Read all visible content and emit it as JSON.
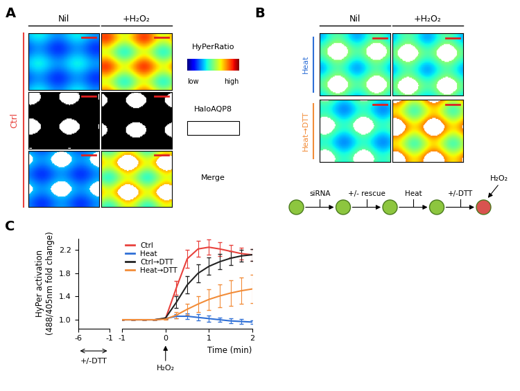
{
  "panel_labels": [
    "A",
    "B",
    "C"
  ],
  "panel_a": {
    "columns": [
      "Nil",
      "+H₂O₂"
    ],
    "row_group": "Ctrl",
    "channels": [
      "HyPerRatio",
      "HaloAQP8",
      "Merge"
    ],
    "colorbar_labels": [
      "low",
      "high"
    ]
  },
  "panel_b": {
    "columns": [
      "Nil",
      "+H₂O₂"
    ],
    "rows": [
      "Heat",
      "Heat→DTT"
    ],
    "flow_steps": [
      "siRNA",
      "+/- rescue",
      "Heat",
      "+/-DTT"
    ],
    "flow_final": "H₂O₂"
  },
  "chart_data": [
    {
      "type": "line",
      "xlim": [
        -6,
        -1
      ],
      "xticks": [
        -6,
        -1
      ],
      "ylim": [
        0.85,
        2.4
      ],
      "yticks": [
        {
          "value": 1.0,
          "label": "1.0"
        },
        {
          "value": 1.4,
          "label": "1.4"
        },
        {
          "value": 1.8,
          "label": "1.8"
        },
        {
          "value": 2.2,
          "label": "2.2"
        }
      ],
      "y_label": "HyPer activation\n(488/405nm fold change)",
      "annotations": [
        {
          "text": "+/-DTT",
          "x_range": [
            -6,
            -1
          ]
        }
      ],
      "x": [],
      "series": []
    },
    {
      "type": "line",
      "xlim": [
        -1,
        2
      ],
      "xticks": [
        -1,
        0,
        1,
        2
      ],
      "ylim": [
        0.85,
        2.4
      ],
      "tick_labels": "x",
      "x_label": "Time (min)",
      "annotations": [
        {
          "text": "H₂O₂",
          "x": 0
        }
      ],
      "legend": "upper left",
      "x": [
        -1,
        -0.75,
        -0.5,
        -0.25,
        0,
        0.25,
        0.5,
        0.75,
        1,
        1.25,
        1.5,
        1.75,
        2
      ],
      "series": [
        {
          "name": "Ctrl",
          "color": "#e8413c",
          "values": [
            1,
            1,
            1,
            1,
            1.02,
            1.55,
            2.05,
            2.22,
            2.25,
            2.22,
            2.18,
            2.14,
            2.12
          ],
          "errors": [
            0,
            0,
            0,
            0,
            0.01,
            0.12,
            0.15,
            0.14,
            0.13,
            0.12,
            0.11,
            0.1,
            0.1
          ]
        },
        {
          "name": "Heat",
          "color": "#2e6fd6",
          "values": [
            1,
            1,
            1,
            1,
            1.02,
            1.06,
            1.06,
            1.04,
            1.02,
            1.0,
            0.98,
            0.97,
            0.96
          ],
          "errors": [
            0,
            0,
            0,
            0,
            0.01,
            0.04,
            0.05,
            0.05,
            0.05,
            0.04,
            0.04,
            0.04,
            0.03
          ]
        },
        {
          "name": "Ctrl→DTT",
          "color": "#222222",
          "values": [
            1,
            1,
            1,
            1,
            1.03,
            1.3,
            1.6,
            1.8,
            1.92,
            2.0,
            2.06,
            2.1,
            2.12
          ],
          "errors": [
            0,
            0,
            0,
            0,
            0.01,
            0.1,
            0.15,
            0.16,
            0.15,
            0.13,
            0.12,
            0.1,
            0.1
          ]
        },
        {
          "name": "Heat→DTT",
          "color": "#f28c38",
          "values": [
            1,
            1,
            1,
            1,
            1.01,
            1.08,
            1.18,
            1.27,
            1.35,
            1.41,
            1.46,
            1.5,
            1.53
          ],
          "errors": [
            0,
            0,
            0,
            0,
            0.01,
            0.05,
            0.1,
            0.14,
            0.18,
            0.2,
            0.22,
            0.23,
            0.24
          ]
        }
      ]
    }
  ]
}
